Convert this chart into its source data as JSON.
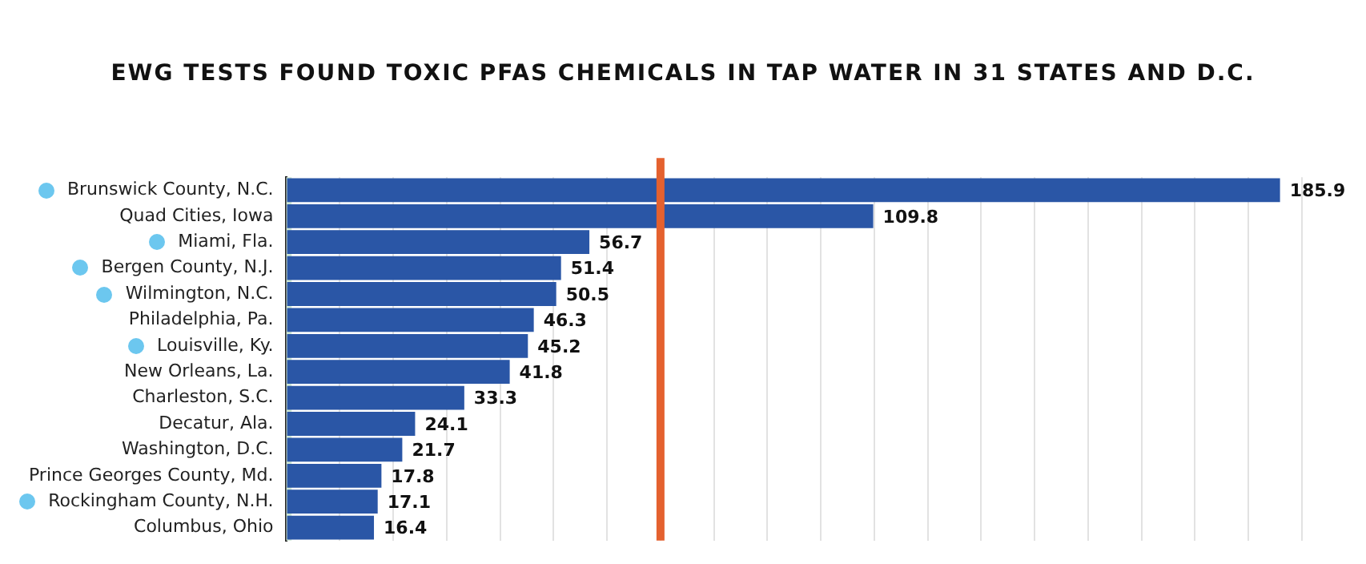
{
  "chart_data": {
    "type": "bar",
    "orientation": "horizontal",
    "title": "EWG TESTS FOUND TOXIC PFAS CHEMICALS IN TAP WATER IN 31 STATES AND D.C.",
    "categories": [
      "Brunswick County, N.C.",
      "Quad Cities, Iowa",
      "Miami, Fla.",
      "Bergen County, N.J.",
      "Wilmington, N.C.",
      "Philadelphia, Pa.",
      "Louisville, Ky.",
      "New Orleans, La.",
      "Charleston, S.C.",
      "Decatur, Ala.",
      "Washington, D.C.",
      "Prince Georges County, Md.",
      "Rockingham County, N.H.",
      "Columbus, Ohio"
    ],
    "values": [
      185.9,
      109.8,
      56.7,
      51.4,
      50.5,
      46.3,
      45.2,
      41.8,
      33.3,
      24.1,
      21.7,
      17.8,
      17.1,
      16.4
    ],
    "color": "#2a56a6",
    "data_labels": true,
    "xlim": [
      0,
      190
    ],
    "xticks": [
      {
        "value": 0,
        "label": null
      },
      {
        "value": 10,
        "label": null
      },
      {
        "value": 20,
        "label": null
      },
      {
        "value": 30,
        "label": null
      },
      {
        "value": 40,
        "label": null
      },
      {
        "value": 50,
        "label": null
      },
      {
        "value": 60,
        "label": null
      },
      {
        "value": 70,
        "label": null
      },
      {
        "value": 80,
        "label": null
      },
      {
        "value": 90,
        "label": null
      },
      {
        "value": 100,
        "label": null
      },
      {
        "value": 110,
        "label": null
      },
      {
        "value": 120,
        "label": null
      },
      {
        "value": 130,
        "label": null
      },
      {
        "value": 140,
        "label": null
      },
      {
        "value": 150,
        "label": null
      },
      {
        "value": 160,
        "label": null
      },
      {
        "value": 170,
        "label": null
      },
      {
        "value": 180,
        "label": null
      },
      {
        "value": 190,
        "label": null
      }
    ],
    "grid": "x",
    "tick_labels": "y",
    "legend": false,
    "ref_lines": [
      {
        "axis": "x",
        "value": 70,
        "color": "#e4612f"
      }
    ],
    "bands": [
      {
        "axis": "x",
        "from": 0,
        "to": 1,
        "color": "#cfe8d6"
      }
    ]
  }
}
